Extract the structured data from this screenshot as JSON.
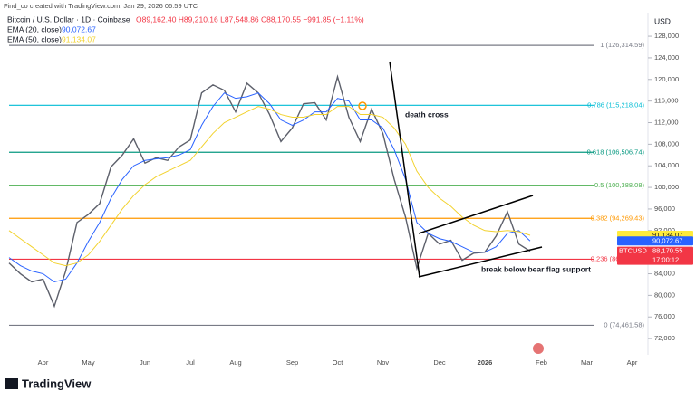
{
  "header": {
    "credit": "Find_co created with TradingView.com, Jan 29, 2026 06:59 UTC",
    "symbol": "Bitcoin / U.S. Dollar · 1D · Coinbase",
    "ohlc": "O89,162.40 H89,210.16 L87,548.86 C88,170.55 −991.85 (−1.11%)"
  },
  "logo": "TradingView",
  "chart_data": {
    "type": "line",
    "currency": "USD",
    "categories": [
      null,
      null,
      null,
      "Apr",
      null,
      null,
      null,
      "May",
      null,
      null,
      null,
      null,
      "Jun",
      null,
      null,
      null,
      "Jul",
      null,
      null,
      null,
      "Aug",
      null,
      null,
      null,
      null,
      "Sep",
      null,
      null,
      null,
      "Oct",
      null,
      null,
      null,
      "Nov",
      null,
      null,
      null,
      null,
      "Dec",
      null,
      null,
      null,
      "2026",
      null,
      null,
      null,
      null,
      "Feb",
      null,
      null,
      null,
      "Mar",
      null,
      null,
      null,
      "Apr"
    ],
    "series": [
      {
        "name": "Bitcoin / U.S. Dollar",
        "color": "#5d606b",
        "values": [
          86000,
          84000,
          82500,
          83000,
          78000,
          84500,
          93500,
          95000,
          97000,
          103800,
          106000,
          109000,
          104500,
          105500,
          105000,
          107500,
          108800,
          117500,
          119000,
          118000,
          114000,
          119300,
          117500,
          113500,
          108500,
          111000,
          115500,
          115700,
          112500,
          120500,
          113000,
          108500,
          114500,
          110000,
          101500,
          94500,
          85000,
          91500,
          89500,
          90200,
          86500,
          87800,
          88000,
          91000,
          95500,
          89500,
          88170.55,
          null,
          null,
          null,
          null,
          null,
          null,
          null,
          null,
          null
        ]
      },
      {
        "name": "EMA (20, close)",
        "legend_value": "90,072.67",
        "color": "#2962ff",
        "values": [
          87000,
          85500,
          84500,
          84000,
          82500,
          83000,
          86000,
          90000,
          93500,
          98000,
          101500,
          104000,
          105000,
          105300,
          105500,
          106000,
          107000,
          111500,
          115000,
          117500,
          116500,
          116800,
          117500,
          115500,
          112500,
          111500,
          112500,
          114000,
          114000,
          116500,
          116000,
          112500,
          112500,
          111000,
          107000,
          101500,
          93500,
          91500,
          90500,
          90000,
          89000,
          88000,
          88000,
          89000,
          91500,
          92000,
          90072.67,
          null,
          null,
          null,
          null,
          null,
          null,
          null,
          null,
          null
        ]
      },
      {
        "name": "EMA (50, close)",
        "legend_value": "91,134.07",
        "color": "#f2d22e",
        "values": [
          92000,
          90500,
          89000,
          87500,
          86000,
          85500,
          86000,
          87500,
          90000,
          93000,
          96000,
          98500,
          100500,
          102000,
          103000,
          104000,
          105000,
          107500,
          110000,
          112000,
          113000,
          114000,
          115000,
          114500,
          113500,
          113000,
          113000,
          113500,
          113500,
          115000,
          115000,
          113500,
          113500,
          113000,
          111000,
          108000,
          103000,
          100000,
          98000,
          96500,
          94500,
          93000,
          92000,
          91800,
          92000,
          91800,
          91134.07,
          null,
          null,
          null,
          null,
          null,
          null,
          null,
          null,
          null
        ]
      }
    ],
    "ylim": [
      69000,
      131700
    ],
    "yticks": [
      {
        "value": 72000,
        "label": "72,000"
      },
      {
        "value": 76000,
        "label": "76,000"
      },
      {
        "value": 80000,
        "label": "80,000"
      },
      {
        "value": 84000,
        "label": "84,000"
      },
      {
        "value": 88000,
        "label": "88,000"
      },
      {
        "value": 92000,
        "label": "92,000"
      },
      {
        "value": 96000,
        "label": "96,000"
      },
      {
        "value": 100000,
        "label": "100,000"
      },
      {
        "value": 104000,
        "label": "104,000"
      },
      {
        "value": 108000,
        "label": "108,000"
      },
      {
        "value": 112000,
        "label": "112,000"
      },
      {
        "value": 116000,
        "label": "116,000"
      },
      {
        "value": 120000,
        "label": "120,000"
      },
      {
        "value": 124000,
        "label": "124,000"
      },
      {
        "value": 128000,
        "label": "128,000"
      }
    ],
    "fib_levels": [
      {
        "value": 126314.59,
        "label": "1 (126,314.59)",
        "color": "#787b86"
      },
      {
        "value": 115218.04,
        "label": "0.786 (115,218.04)",
        "color": "#00bcd4"
      },
      {
        "value": 106506.74,
        "label": "0.618 (106,506.74)",
        "color": "#089981"
      },
      {
        "value": 100388.08,
        "label": "0.5 (100,388.08)",
        "color": "#4caf50"
      },
      {
        "value": 94269.43,
        "label": "0.382 (94,269.43)",
        "color": "#ff9800"
      },
      {
        "value": 86698.89,
        "label": "0.236 (86,698.89)",
        "color": "#f23645"
      },
      {
        "value": 74461.58,
        "label": "0 (74,461.58)",
        "color": "#787b86"
      }
    ],
    "price_tags": [
      {
        "value": 91134.07,
        "label": "91,134.07",
        "color": "#ffeb3b",
        "text_color": "#131722"
      },
      {
        "value": 90072.67,
        "label": "90,072.67",
        "color": "#2962ff",
        "text_color": "#ffffff"
      },
      {
        "name": "BTCUSD",
        "value": 88170.55,
        "label": "88,170.55",
        "color": "#f23645",
        "text_color": "#ffffff"
      }
    ],
    "countdown": "17:00:12",
    "annotations": [
      "death cross",
      "break below bear flag support"
    ]
  }
}
